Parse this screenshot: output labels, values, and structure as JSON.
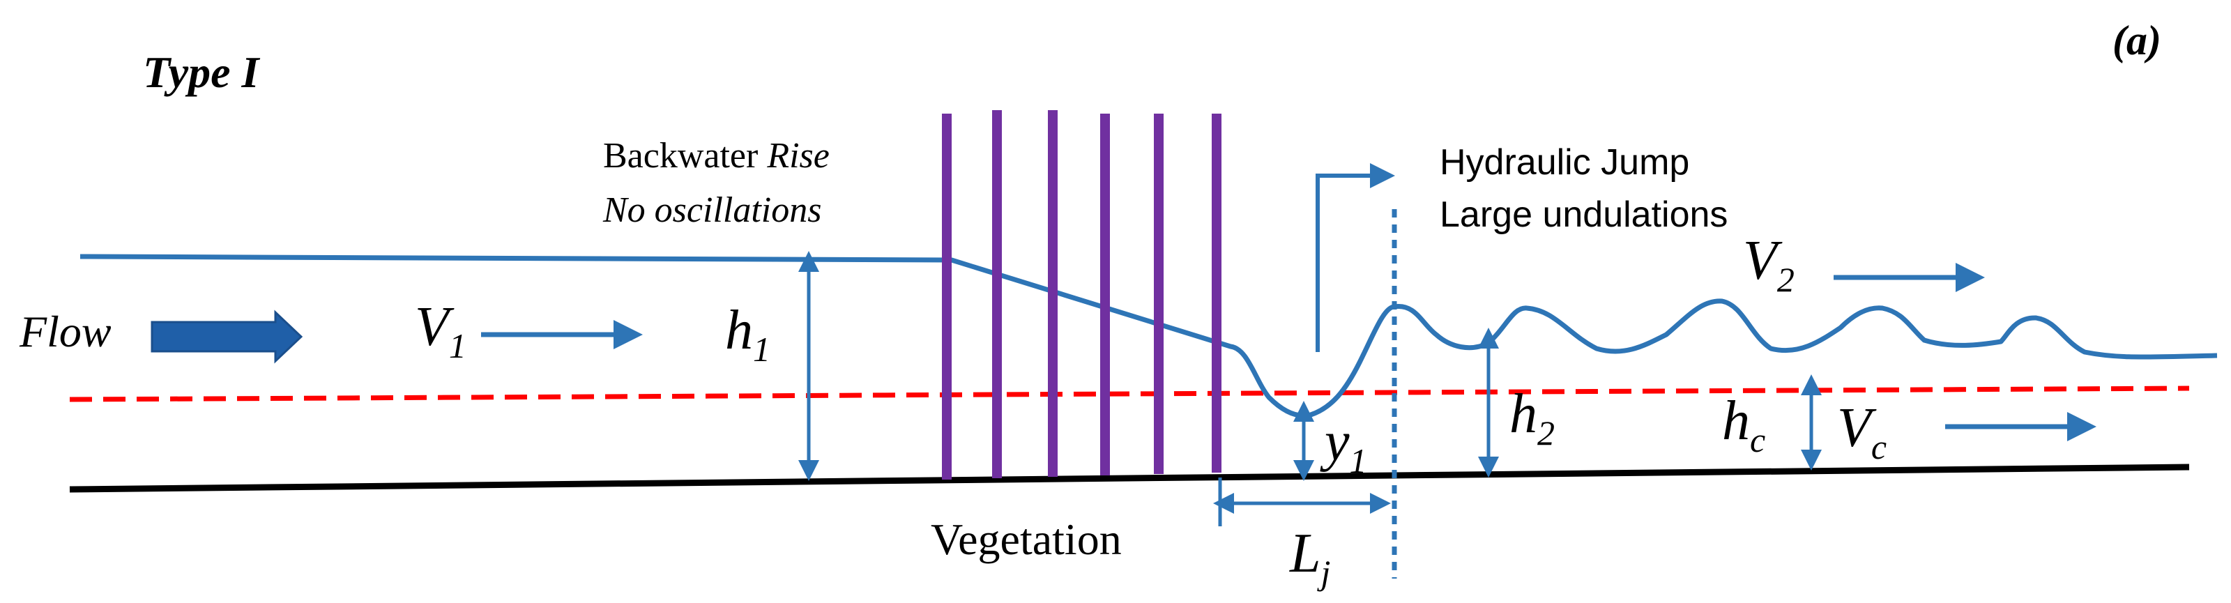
{
  "title": "Type I",
  "panel_label": "(a)",
  "labels": {
    "flow": "Flow",
    "backwater_line1": "Backwater ",
    "backwater_rise": "Rise",
    "backwater_line2": "No oscillations",
    "jump_line1": "Hydraulic Jump",
    "jump_line2": "Large undulations",
    "vegetation": "Vegetation"
  },
  "symbols": {
    "V1": {
      "main": "V",
      "sub": "1"
    },
    "h1": {
      "main": "h",
      "sub": "1"
    },
    "y1": {
      "main": "y",
      "sub": "1"
    },
    "h2": {
      "main": "h",
      "sub": "2"
    },
    "hc": {
      "main": "h",
      "sub": "c"
    },
    "V2": {
      "main": "V",
      "sub": "2"
    },
    "Vc": {
      "main": "V",
      "sub": "c"
    },
    "Lj": {
      "main": "L",
      "sub": "j"
    }
  },
  "vegetation_stem_count": 6,
  "colors": {
    "water": "#2E75B6",
    "flow_arrow": "#1F5FA8",
    "vegetation": "#7030A0",
    "critical_depth": "#FF0000",
    "bed": "#000000",
    "text": "#000000"
  }
}
